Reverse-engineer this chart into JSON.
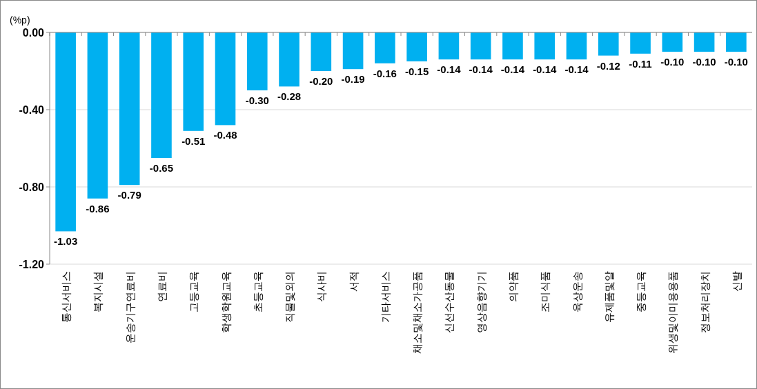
{
  "chart_data": {
    "type": "bar",
    "ylabel": "(%p)",
    "categories": [
      "통신서비스",
      "복지시설",
      "운송기구연료비",
      "연료비",
      "고등교육",
      "학생학원교육",
      "초등교육",
      "직물및외의",
      "식사비",
      "서적",
      "기타서비스",
      "채소및채소가공품",
      "신선수산동물",
      "영상음향기기",
      "의약품",
      "조미식품",
      "육상운송",
      "유제품및알",
      "중등교육",
      "위생및이미용용품",
      "정보처리장치",
      "신발"
    ],
    "values": [
      -1.03,
      -0.86,
      -0.79,
      -0.65,
      -0.51,
      -0.48,
      -0.3,
      -0.28,
      -0.2,
      -0.19,
      -0.16,
      -0.15,
      -0.14,
      -0.14,
      -0.14,
      -0.14,
      -0.14,
      -0.12,
      -0.11,
      -0.1,
      -0.1,
      -0.1
    ],
    "value_labels": [
      "-1.03",
      "-0.86",
      "-0.79",
      "-0.65",
      "-0.51",
      "-0.48",
      "-0.30",
      "-0.28",
      "-0.20",
      "-0.19",
      "-0.16",
      "-0.15",
      "-0.14",
      "-0.14",
      "-0.14",
      "-0.14",
      "-0.14",
      "-0.12",
      "-0.11",
      "-0.10",
      "-0.10",
      "-0.10"
    ],
    "color": "#00b0f0",
    "ylim": [
      -1.2,
      0
    ],
    "yticks": [
      {
        "value": 0,
        "label": "0.00"
      },
      {
        "value": -0.4,
        "label": "-0.40"
      },
      {
        "value": -0.8,
        "label": "-0.80"
      },
      {
        "value": -1.2,
        "label": "-1.20"
      }
    ],
    "grid": "y"
  }
}
